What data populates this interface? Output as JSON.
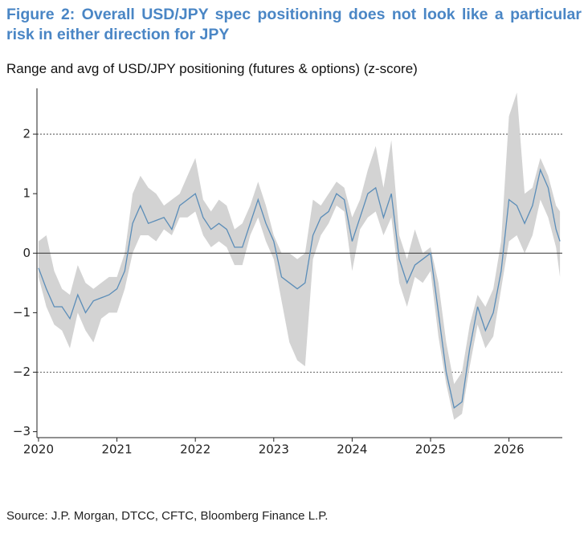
{
  "title": "Figure 2: Overall USD/JPY spec positioning does not look like a particular risk in either direction for JPY",
  "subtitle": "Range and avg of USD/JPY positioning (futures & options) (z-score)",
  "source": "Source: J.P. Morgan, DTCC, CFTC, Bloomberg Finance L.P.",
  "chart_data": {
    "type": "line",
    "x": [
      2020.0,
      2020.1,
      2020.2,
      2020.3,
      2020.4,
      2020.5,
      2020.6,
      2020.7,
      2020.8,
      2020.9,
      2021.0,
      2021.1,
      2021.2,
      2021.3,
      2021.4,
      2021.5,
      2021.6,
      2021.7,
      2021.8,
      2021.9,
      2022.0,
      2022.1,
      2022.2,
      2022.3,
      2022.4,
      2022.5,
      2022.6,
      2022.7,
      2022.8,
      2022.9,
      2023.0,
      2023.1,
      2023.2,
      2023.3,
      2023.4,
      2023.5,
      2023.6,
      2023.7,
      2023.8,
      2023.9,
      2024.0,
      2024.1,
      2024.2,
      2024.3,
      2024.4,
      2024.5,
      2024.6,
      2024.7,
      2024.8,
      2024.9,
      2025.0,
      2025.1,
      2025.2,
      2025.3,
      2025.4,
      2025.5,
      2025.6,
      2025.7,
      2025.8,
      2025.9,
      2026.0,
      2026.1,
      2026.2,
      2026.3,
      2026.4,
      2026.5,
      2026.6,
      2026.65
    ],
    "values": [
      -0.25,
      -0.6,
      -0.9,
      -0.9,
      -1.1,
      -0.7,
      -1.0,
      -0.8,
      -0.75,
      -0.7,
      -0.6,
      -0.3,
      0.5,
      0.8,
      0.5,
      0.55,
      0.6,
      0.4,
      0.8,
      0.9,
      1.0,
      0.6,
      0.4,
      0.5,
      0.4,
      0.1,
      0.1,
      0.5,
      0.9,
      0.5,
      0.2,
      -0.4,
      -0.5,
      -0.6,
      -0.5,
      0.3,
      0.6,
      0.7,
      1.0,
      0.9,
      0.2,
      0.6,
      1.0,
      1.1,
      0.6,
      1.0,
      -0.1,
      -0.5,
      -0.2,
      -0.1,
      0.0,
      -1.0,
      -2.0,
      -2.6,
      -2.5,
      -1.6,
      -0.9,
      -1.3,
      -1.0,
      -0.3,
      0.9,
      0.8,
      0.5,
      0.8,
      1.4,
      1.1,
      0.4,
      0.2
    ],
    "color": "#5b8db8",
    "range": {
      "low": [
        -0.4,
        -0.9,
        -1.2,
        -1.3,
        -1.6,
        -1.0,
        -1.3,
        -1.5,
        -1.1,
        -1.0,
        -1.0,
        -0.6,
        0.0,
        0.3,
        0.3,
        0.2,
        0.4,
        0.3,
        0.6,
        0.6,
        0.7,
        0.3,
        0.1,
        0.2,
        0.1,
        -0.2,
        -0.2,
        0.3,
        0.6,
        0.2,
        -0.1,
        -0.8,
        -1.5,
        -1.8,
        -1.9,
        -0.1,
        0.3,
        0.5,
        0.8,
        0.7,
        -0.3,
        0.4,
        0.6,
        0.7,
        0.3,
        0.6,
        -0.5,
        -0.9,
        -0.4,
        -0.5,
        -0.3,
        -1.4,
        -2.2,
        -2.8,
        -2.7,
        -1.9,
        -1.2,
        -1.6,
        -1.4,
        -0.6,
        0.2,
        0.3,
        0.0,
        0.3,
        0.9,
        0.6,
        0.1,
        -0.4
      ],
      "high": [
        0.2,
        0.3,
        -0.3,
        -0.6,
        -0.7,
        -0.2,
        -0.5,
        -0.6,
        -0.5,
        -0.4,
        -0.4,
        0.0,
        1.0,
        1.3,
        1.1,
        1.0,
        0.8,
        0.9,
        1.0,
        1.3,
        1.6,
        0.9,
        0.7,
        0.9,
        0.8,
        0.4,
        0.5,
        0.8,
        1.2,
        0.8,
        0.3,
        0.0,
        0.0,
        -0.1,
        0.0,
        0.9,
        0.8,
        1.0,
        1.2,
        1.1,
        0.6,
        0.9,
        1.4,
        1.8,
        1.1,
        1.9,
        0.3,
        -0.1,
        0.4,
        0.0,
        0.1,
        -0.5,
        -1.5,
        -2.2,
        -2.0,
        -1.2,
        -0.7,
        -0.9,
        -0.6,
        0.2,
        2.3,
        2.7,
        1.0,
        1.1,
        1.6,
        1.3,
        0.8,
        0.7
      ],
      "color": "#d3d3d3"
    },
    "xlim": [
      2019.98,
      2026.68
    ],
    "ylim": [
      -3.1,
      2.77
    ],
    "xticks": [
      2020,
      2021,
      2022,
      2023,
      2024,
      2025,
      2026
    ],
    "yticks": [
      {
        "value": -3,
        "label": "−3"
      },
      {
        "value": -2,
        "label": "−2"
      },
      {
        "value": -1,
        "label": "−1"
      },
      0,
      1,
      2
    ],
    "dashed_lines": [
      -2,
      2
    ],
    "zero_line": 0
  }
}
